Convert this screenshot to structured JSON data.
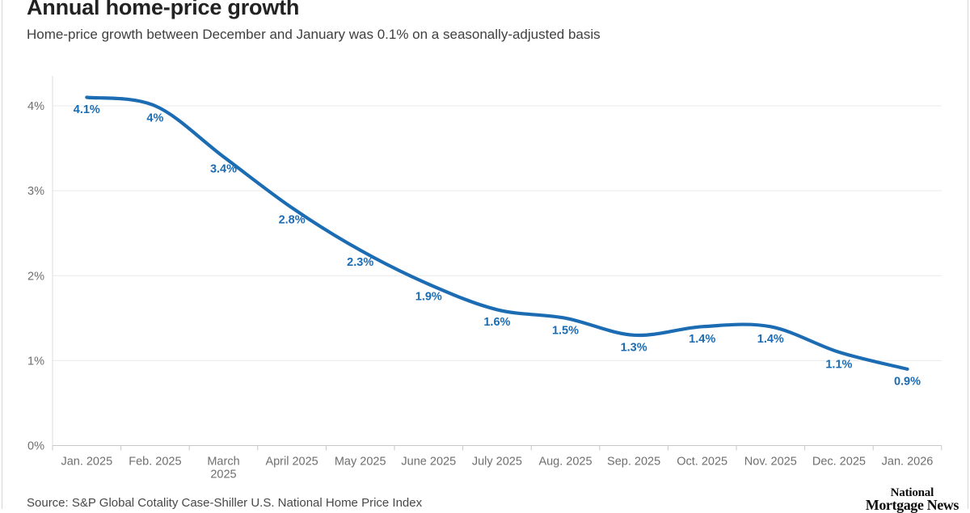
{
  "header": {
    "title": "Annual home-price growth",
    "subtitle": "Home-price growth between December and January was 0.1% on a seasonally-adjusted basis"
  },
  "footer": {
    "source": "Source: S&P Global Cotality Case-Shiller U.S. National Home Price Index",
    "logo_line1": "National",
    "logo_line2": "Mortgage News"
  },
  "chart_data": {
    "type": "line",
    "title": "Annual home-price growth",
    "subtitle": "Home-price growth between December and January was 0.1% on a seasonally-adjusted basis",
    "x": [
      "Jan. 2025",
      "Feb. 2025",
      "March\n2025",
      "April 2025",
      "May 2025",
      "June 2025",
      "July 2025",
      "Aug. 2025",
      "Sep. 2025",
      "Oct. 2025",
      "Nov. 2025",
      "Dec. 2025",
      "Jan. 2026"
    ],
    "values": [
      4.1,
      4,
      3.4,
      2.8,
      2.3,
      1.9,
      1.6,
      1.5,
      1.3,
      1.4,
      1.4,
      1.1,
      0.9
    ],
    "point_labels": [
      "4.1%",
      "4%",
      "3.4%",
      "2.8%",
      "2.3%",
      "1.9%",
      "1.6%",
      "1.5%",
      "1.3%",
      "1.4%",
      "1.4%",
      "1.1%",
      "0.9%"
    ],
    "y_ticks": [
      {
        "v": 0,
        "label": "0%"
      },
      {
        "v": 1,
        "label": "1%"
      },
      {
        "v": 2,
        "label": "2%"
      },
      {
        "v": 3,
        "label": "3%"
      },
      {
        "v": 4,
        "label": "4%"
      }
    ],
    "ylim": [
      0,
      4.35
    ],
    "xlabel": "",
    "ylabel": "",
    "grid": true,
    "legend": "none",
    "smooth": true,
    "line_color": "#1b6cb3",
    "label_color": "#1b6cb3",
    "grid_color": "#e9e9e9",
    "axis_color": "#c8c8c8",
    "tick_label_color": "#6f6f6f"
  }
}
